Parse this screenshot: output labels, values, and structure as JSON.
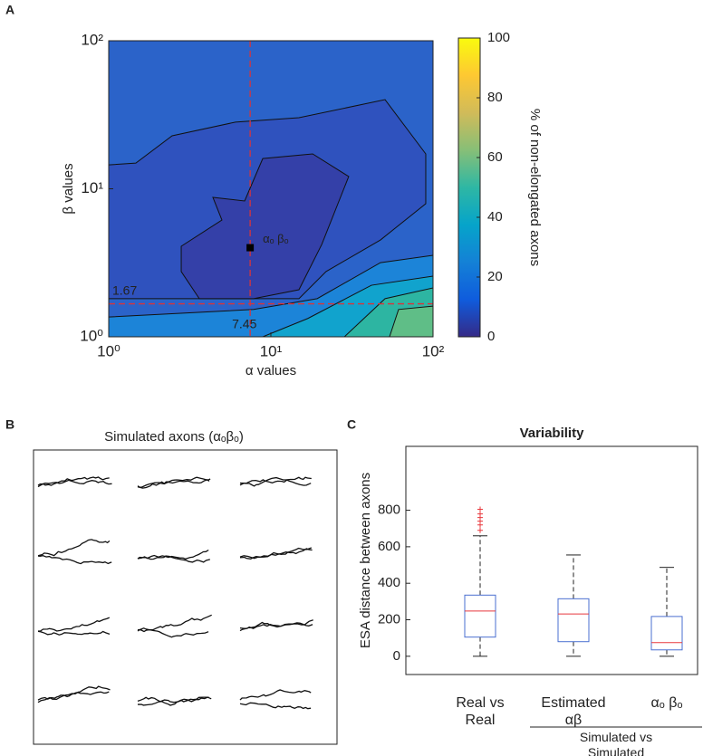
{
  "panel_labels": [
    "A",
    "B",
    "C"
  ],
  "chart_data": [
    {
      "type": "contour",
      "xlabel": "α  values",
      "ylabel": "β values",
      "xscale": "log",
      "yscale": "log",
      "xlim": [
        1,
        100
      ],
      "ylim": [
        1,
        100
      ],
      "xticks": [
        {
          "value": 1,
          "label": "10⁰"
        },
        {
          "value": 10,
          "label": "10¹"
        },
        {
          "value": 100,
          "label": "10²"
        }
      ],
      "yticks": [
        {
          "value": 1,
          "label": "10⁰"
        },
        {
          "value": 10,
          "label": "10¹"
        },
        {
          "value": 100,
          "label": "10²"
        }
      ],
      "facecolor": "#2b63c9",
      "contours": [
        {
          "color": "#2f52be",
          "x": [
            1,
            1.47,
            2.46,
            6.05,
            14.9,
            50.6,
            90.2,
            90.2,
            47.4,
            21.9,
            14.9,
            1
          ],
          "y": [
            14.5,
            14.9,
            22.8,
            28.2,
            30.2,
            40.0,
            17.2,
            7.93,
            4.51,
            2.76,
            1.81,
            1.81
          ]
        },
        {
          "color": "#3440a8",
          "x": [
            2.8,
            4.99,
            4.39,
            6.89,
            8.91,
            18.1,
            30.2,
            20.6,
            14.9,
            7.83,
            3.62,
            2.8
          ],
          "y": [
            4.09,
            6.15,
            8.75,
            8.27,
            16.0,
            17.2,
            12.1,
            4.21,
            2.08,
            1.81,
            1.81,
            2.76
          ]
        },
        {
          "color": "#1c84d8",
          "x": [
            1,
            7.83,
            19.3,
            47.4,
            100,
            100,
            1
          ],
          "y": [
            1.36,
            1.53,
            1.81,
            3.17,
            3.55,
            1,
            1
          ]
        },
        {
          "color": "#11a3cd",
          "x": [
            8.91,
            16.9,
            41.7,
            100,
            100
          ],
          "y": [
            1,
            1.33,
            2.23,
            2.57,
            1
          ]
        },
        {
          "color": "#2db5a2",
          "x": [
            28.4,
            50.6,
            100,
            100
          ],
          "y": [
            1,
            1.81,
            2.14,
            1
          ]
        },
        {
          "color": "#5fbe87",
          "x": [
            53.9,
            61.3,
            100,
            100
          ],
          "y": [
            1,
            1.53,
            1.61,
            1
          ]
        }
      ],
      "ref_lines": {
        "color": "#d9343a",
        "x": 7.45,
        "y": 1.67
      },
      "marker": {
        "x": 7.45,
        "y": 4.0,
        "label": "αₒ βₒ"
      },
      "colorbar": {
        "label": "% of non-elongated axons",
        "clim": [
          0,
          100
        ],
        "ticks": [
          0,
          20,
          40,
          60,
          80,
          100
        ],
        "colormap": "parula"
      }
    },
    {
      "type": "traces",
      "title": "Simulated axons (αₒβₒ)"
    },
    {
      "type": "box",
      "title": "Variability",
      "ylabel": "ESA distance between axons",
      "ylim": [
        -100,
        1150
      ],
      "yticks": [
        0,
        200,
        400,
        600,
        800
      ],
      "categories": [
        "Real vs\nReal",
        "Estimated\nαβ",
        "αₒ βₒ"
      ],
      "group_label": "Simulated vs\nSimulated",
      "box_color": "#4a6fd0",
      "median_color": "#e8383d",
      "flier_color": "#e8383d",
      "stats": [
        {
          "whislo": 0,
          "q1": 105,
          "med": 248,
          "q3": 335,
          "whishi": 660,
          "fliers": [
            690,
            720,
            740,
            760,
            780,
            805
          ]
        },
        {
          "whislo": 0,
          "q1": 80,
          "med": 232,
          "q3": 315,
          "whishi": 555,
          "fliers": []
        },
        {
          "whislo": 0,
          "q1": 35,
          "med": 75,
          "q3": 218,
          "whishi": 487,
          "fliers": []
        }
      ]
    }
  ]
}
